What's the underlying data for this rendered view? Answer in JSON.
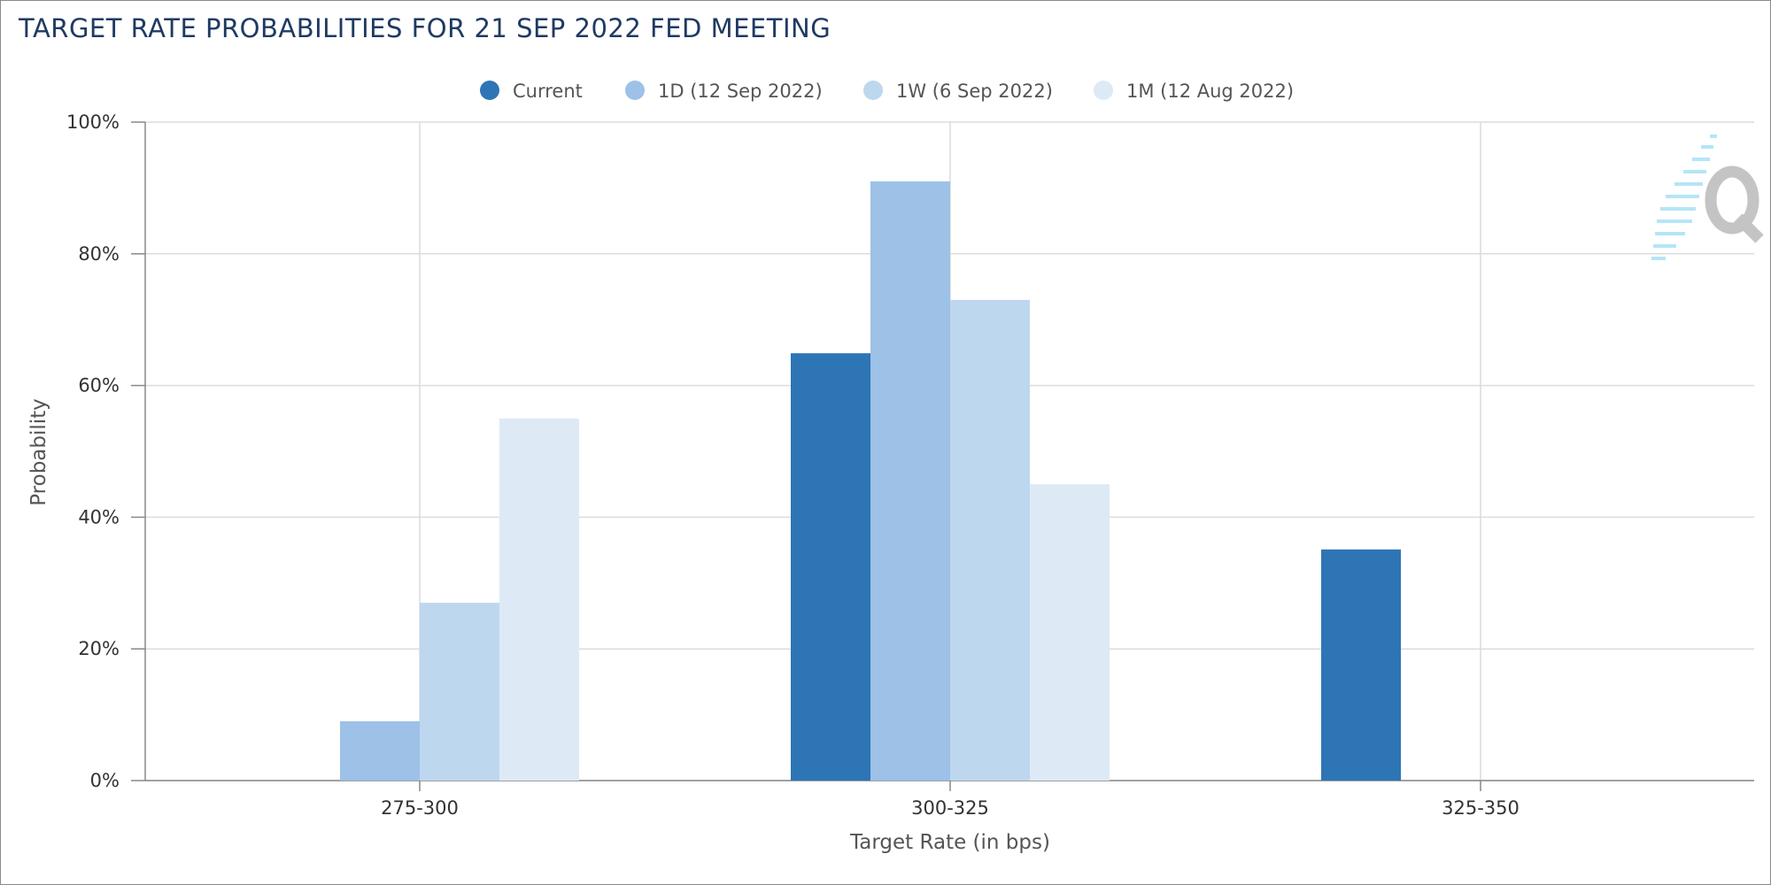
{
  "chart_data": {
    "type": "bar",
    "title": "TARGET RATE PROBABILITIES FOR 21 SEP 2022 FED MEETING",
    "xlabel": "Target Rate (in bps)",
    "ylabel": "Probability",
    "categories": [
      "275-300",
      "300-325",
      "325-350"
    ],
    "series": [
      {
        "name": "Current",
        "color": "#2e75b6",
        "values": [
          0,
          64.9,
          35.1
        ]
      },
      {
        "name": "1D (12 Sep 2022)",
        "color": "#9dc1e7",
        "values": [
          9.0,
          91.0,
          0
        ]
      },
      {
        "name": "1W (6 Sep 2022)",
        "color": "#bdd7ee",
        "values": [
          27.0,
          73.0,
          0
        ]
      },
      {
        "name": "1M (12 Aug 2022)",
        "color": "#ddeaf6",
        "values": [
          55.0,
          45.0,
          0
        ]
      }
    ],
    "ylim": [
      0,
      100
    ],
    "yticks": [
      0,
      20,
      40,
      60,
      80,
      100
    ],
    "ytick_labels": [
      "0%",
      "20%",
      "40%",
      "60%",
      "80%",
      "100%"
    ],
    "grid": true,
    "legend_position": "top-center"
  },
  "watermark": {
    "icon": "q-logo-icon"
  }
}
